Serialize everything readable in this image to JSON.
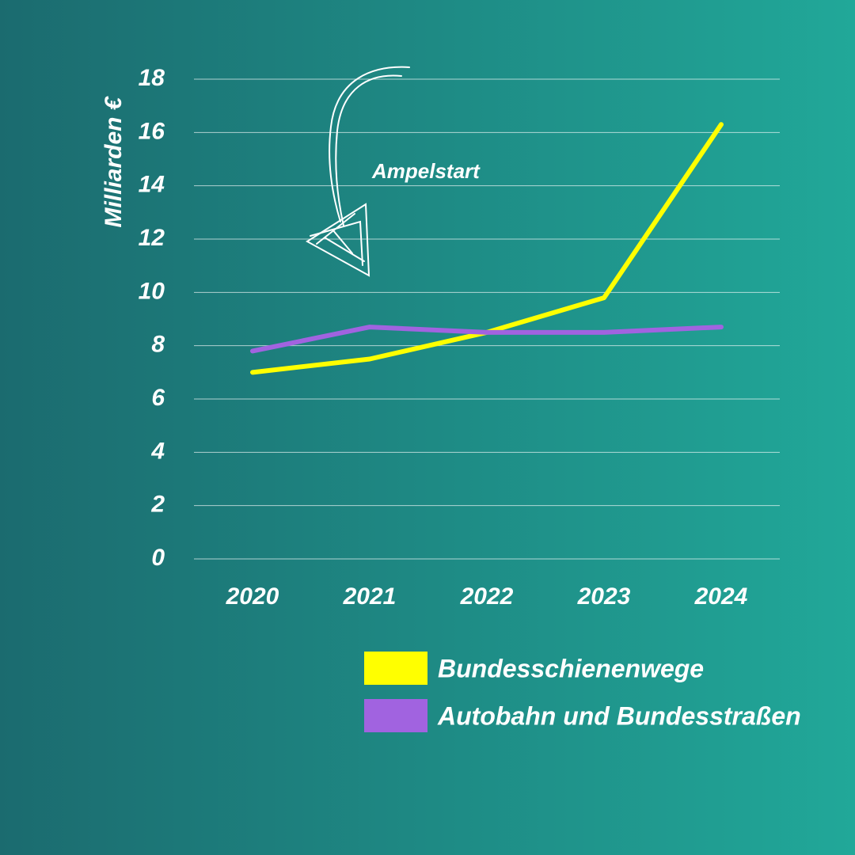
{
  "chart_data": {
    "type": "line",
    "ylabel": "Milliarden €",
    "annotation": "Ampelstart",
    "categories": [
      "2020",
      "2021",
      "2022",
      "2023",
      "2024"
    ],
    "series": [
      {
        "name": "Bundesschienenwege",
        "color": "#ffff00",
        "values": [
          7.0,
          7.5,
          8.5,
          9.8,
          16.3
        ]
      },
      {
        "name": "Autobahn und Bundesstraßen",
        "color": "#a163e0",
        "values": [
          7.8,
          8.7,
          8.5,
          8.5,
          8.7
        ]
      }
    ],
    "ylim": [
      0,
      18
    ],
    "yticks": [
      0,
      2,
      4,
      6,
      8,
      10,
      12,
      14,
      16,
      18
    ],
    "grid": true
  }
}
